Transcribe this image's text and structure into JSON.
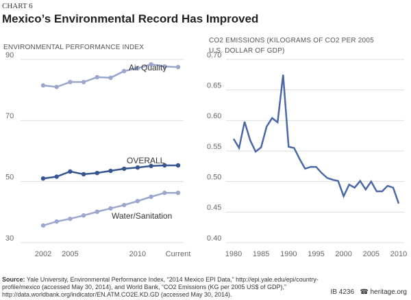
{
  "header": {
    "label": "CHART 6",
    "title": "Mexico’s Environmental Record Has Improved"
  },
  "chart_data": [
    {
      "type": "line",
      "title": "ENVIRONMENTAL PERFORMANCE INDEX",
      "categories": [
        "2002",
        null,
        "2005",
        null,
        null,
        null,
        null,
        "2010",
        null,
        null,
        "Current"
      ],
      "series": [
        {
          "name": "Air Quality",
          "color": "#9aa6cc",
          "values": [
            81.5,
            81.0,
            82.6,
            82.6,
            84.2,
            84.0,
            86.2,
            87.1,
            88.4,
            87.7,
            87.5
          ]
        },
        {
          "name": "OVERALL",
          "color": "#34558f",
          "values": [
            51.0,
            51.6,
            53.3,
            52.4,
            52.8,
            53.5,
            54.2,
            54.6,
            55.1,
            55.3,
            55.3
          ]
        },
        {
          "name": "Water/Sanitation",
          "color": "#9aa6cc",
          "values": [
            35.6,
            36.9,
            37.8,
            38.9,
            40.1,
            41.2,
            42.3,
            43.6,
            45.0,
            46.3,
            46.3
          ]
        }
      ],
      "ylim": [
        30,
        90
      ],
      "yticks": [
        30,
        50,
        70,
        90
      ],
      "grid": true,
      "markers": true
    },
    {
      "type": "line",
      "title": "CO2 EMISSIONS (KILOGRAMS OF CO2 PER 2005 U.S. DOLLAR OF GDP)",
      "x": [
        1980,
        1981,
        1982,
        1983,
        1984,
        1985,
        1986,
        1987,
        1988,
        1989,
        1990,
        1991,
        1992,
        1993,
        1994,
        1995,
        1996,
        1997,
        1998,
        1999,
        2000,
        2001,
        2002,
        2003,
        2004,
        2005,
        2006,
        2007,
        2008,
        2009,
        2010
      ],
      "series": [
        {
          "color": "#4a68a6",
          "values": [
            0.57,
            0.555,
            0.598,
            0.568,
            0.549,
            0.556,
            0.59,
            0.604,
            0.597,
            0.675,
            0.557,
            0.555,
            0.537,
            0.521,
            0.524,
            0.524,
            0.514,
            0.506,
            0.503,
            0.501,
            0.476,
            0.495,
            0.49,
            0.501,
            0.487,
            0.5,
            0.484,
            0.484,
            0.493,
            0.49,
            0.464
          ]
        }
      ],
      "xlim": [
        1980,
        2010
      ],
      "xticks": [
        1980,
        1985,
        1990,
        1995,
        2000,
        2005,
        2010
      ],
      "ylim": [
        0.4,
        0.7
      ],
      "yticks": [
        {
          "value": 0.4,
          "label": "0.40"
        },
        0.45,
        {
          "value": 0.5,
          "label": "0.50"
        },
        0.55,
        {
          "value": 0.6,
          "label": "0.60"
        },
        0.65,
        {
          "value": 0.7,
          "label": "0.70"
        }
      ],
      "grid": true,
      "markers": false
    }
  ],
  "footer": {
    "source_label": "Source:",
    "source": "Yale University, Environmental Performance Index, “2014 Mexico EPI Data,” http://epi.yale.edu/epi/country-profile/mexico (accessed May 30, 2014), and World Bank, “CO2 Emissions (KG per 2005 US$ of GDP),” http://data.worldbank.org/indicator/EN.ATM.CO2E.KD.GD (accessed May 30, 2014).",
    "id": "IB 4236",
    "site": "heritage.org"
  }
}
